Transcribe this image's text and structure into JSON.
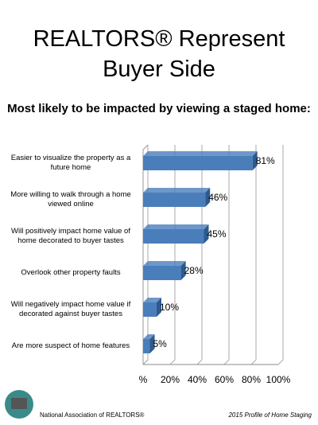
{
  "chart_data": {
    "type": "bar",
    "orientation": "horizontal",
    "title": "REALTORS® Represent Buyer Side",
    "subtitle": "Most likely to be impacted by viewing a staged home:",
    "categories": [
      "Easier to visualize the property as a future home",
      "More willing to walk through a home viewed online",
      "Will positively impact home value of home decorated to buyer tastes",
      "Overlook other property faults",
      "Will negatively impact home value if decorated against buyer tastes",
      "Are more suspect of home features"
    ],
    "values": [
      81,
      46,
      45,
      28,
      10,
      5
    ],
    "value_labels": [
      "81%",
      "46%",
      "45%",
      "28%",
      "10%",
      "5%"
    ],
    "color": "#4a7ebb",
    "xlim": [
      0,
      100
    ],
    "xticks": [
      {
        "value": 0,
        "label": "%"
      },
      {
        "value": 20,
        "label": "20%"
      },
      {
        "value": 40,
        "label": "40%"
      },
      {
        "value": 60,
        "label": "60%"
      },
      {
        "value": 80,
        "label": "80%"
      },
      {
        "value": 100,
        "label": "100%"
      }
    ],
    "grid": true
  },
  "footer": {
    "left": "National Association of REALTORS®",
    "right": "2015 Profile of Home Staging"
  }
}
